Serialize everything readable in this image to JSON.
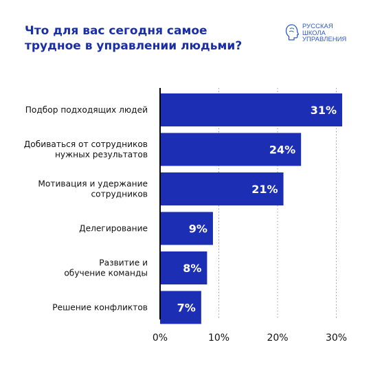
{
  "header": {
    "title_lines": [
      "Что для вас сегодня самое",
      "трудное в управлении людьми?"
    ]
  },
  "logo": {
    "icon": "head-profile-icon",
    "lines": [
      "РУССКАЯ",
      "ШКОЛА",
      "УПРАВЛЕНИЯ"
    ],
    "color": "#2e58c9"
  },
  "chart_data": {
    "type": "bar",
    "orientation": "horizontal",
    "categories": [
      [
        "Подбор подходящих людей"
      ],
      [
        "Добиваться от сотрудников",
        "нужных результатов"
      ],
      [
        "Мотивация и удержание",
        "сотрудников"
      ],
      [
        "Делегирование"
      ],
      [
        "Развитие и",
        "обучение команды"
      ],
      [
        "Решение конфликтов"
      ]
    ],
    "values": [
      31,
      24,
      21,
      9,
      8,
      7
    ],
    "value_labels": [
      "31%",
      "24%",
      "21%",
      "9%",
      "8%",
      "7%"
    ],
    "xlim": [
      0,
      31
    ],
    "xticks": [
      0,
      10,
      20,
      30
    ],
    "xtick_labels": [
      "0%",
      "10%",
      "20%",
      "30%"
    ],
    "grid": "vertical dotted",
    "bar_color": "#1c2fb4",
    "title": "Что для вас сегодня самое трудное в управлении людьми?"
  }
}
